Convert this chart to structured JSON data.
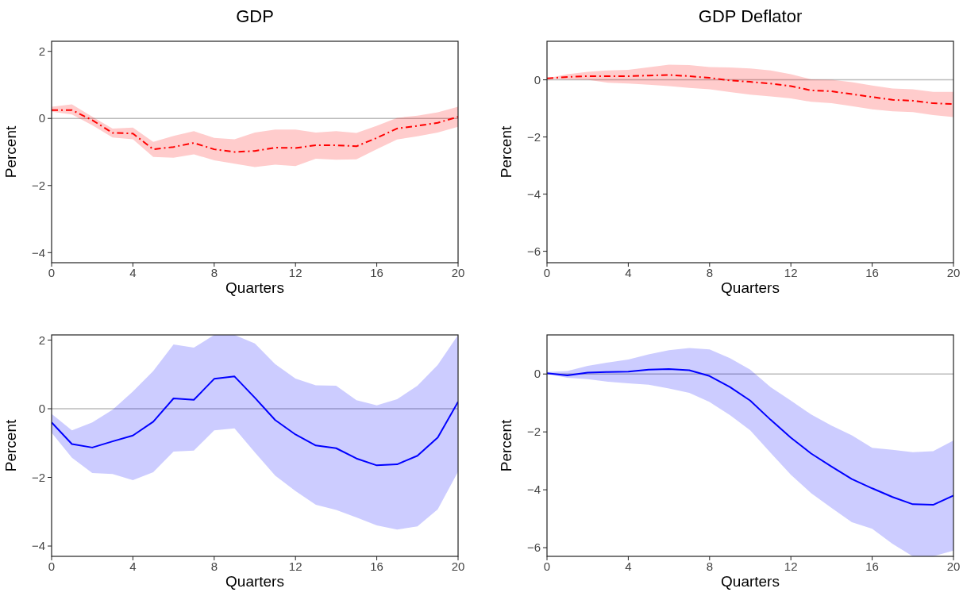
{
  "chart_data": [
    {
      "type": "line",
      "title": "GDP",
      "xlabel": "Quarters",
      "ylabel": "Percent",
      "x": [
        0,
        1,
        2,
        3,
        4,
        5,
        6,
        7,
        8,
        9,
        10,
        11,
        12,
        13,
        14,
        15,
        16,
        17,
        18,
        19,
        20
      ],
      "xlim": [
        0,
        20
      ],
      "xticks": [
        0,
        4,
        8,
        12,
        16,
        20
      ],
      "ylim": [
        -4.3,
        2.3
      ],
      "yticks": [
        -4,
        -2,
        0,
        2
      ],
      "grid": false,
      "line_style": "dashdot",
      "ref_lines": [
        {
          "axis": "y",
          "value": 0,
          "color": "#bbbbbb"
        }
      ],
      "series": [
        {
          "color": "#ff0000",
          "values": [
            0.25,
            0.25,
            -0.05,
            -0.43,
            -0.45,
            -0.92,
            -0.85,
            -0.73,
            -0.92,
            -1.0,
            -0.97,
            -0.87,
            -0.88,
            -0.8,
            -0.8,
            -0.83,
            -0.58,
            -0.3,
            -0.22,
            -0.13,
            0.05
          ],
          "upper": [
            0.35,
            0.42,
            0.05,
            -0.3,
            -0.27,
            -0.7,
            -0.52,
            -0.38,
            -0.58,
            -0.62,
            -0.42,
            -0.33,
            -0.33,
            -0.42,
            -0.38,
            -0.43,
            -0.22,
            0.02,
            0.08,
            0.18,
            0.35
          ],
          "lower": [
            0.2,
            0.12,
            -0.2,
            -0.57,
            -0.62,
            -1.15,
            -1.17,
            -1.07,
            -1.25,
            -1.35,
            -1.45,
            -1.38,
            -1.42,
            -1.2,
            -1.23,
            -1.22,
            -0.92,
            -0.63,
            -0.53,
            -0.42,
            -0.25
          ]
        }
      ]
    },
    {
      "type": "line",
      "title": "GDP Deflator",
      "xlabel": "Quarters",
      "ylabel": "Percent",
      "x": [
        0,
        1,
        2,
        3,
        4,
        5,
        6,
        7,
        8,
        9,
        10,
        11,
        12,
        13,
        14,
        15,
        16,
        17,
        18,
        19,
        20
      ],
      "xlim": [
        0,
        20
      ],
      "xticks": [
        0,
        4,
        8,
        12,
        16,
        20
      ],
      "ylim": [
        -6.4,
        1.35
      ],
      "yticks": [
        -6,
        -4,
        -2,
        0
      ],
      "grid": false,
      "line_style": "dashdot",
      "ref_lines": [
        {
          "axis": "y",
          "value": 0,
          "color": "#bbbbbb"
        }
      ],
      "series": [
        {
          "color": "#ff0000",
          "values": [
            0.05,
            0.1,
            0.13,
            0.13,
            0.13,
            0.15,
            0.17,
            0.13,
            0.07,
            -0.02,
            -0.07,
            -0.13,
            -0.22,
            -0.37,
            -0.4,
            -0.5,
            -0.6,
            -0.7,
            -0.73,
            -0.82,
            -0.85
          ],
          "upper": [
            0.05,
            0.2,
            0.28,
            0.33,
            0.35,
            0.44,
            0.53,
            0.52,
            0.45,
            0.43,
            0.4,
            0.33,
            0.2,
            0.02,
            0.0,
            -0.08,
            -0.2,
            -0.3,
            -0.33,
            -0.42,
            -0.42
          ],
          "lower": [
            0.05,
            0.02,
            0.0,
            -0.1,
            -0.13,
            -0.17,
            -0.22,
            -0.28,
            -0.33,
            -0.43,
            -0.52,
            -0.58,
            -0.65,
            -0.77,
            -0.82,
            -0.92,
            -1.03,
            -1.1,
            -1.13,
            -1.23,
            -1.3
          ]
        }
      ]
    },
    {
      "type": "line",
      "xlabel": "Quarters",
      "ylabel": "Percent",
      "x": [
        0,
        1,
        2,
        3,
        4,
        5,
        6,
        7,
        8,
        9,
        10,
        11,
        12,
        13,
        14,
        15,
        16,
        17,
        18,
        19,
        20
      ],
      "xlim": [
        0,
        20
      ],
      "xticks": [
        0,
        4,
        8,
        12,
        16,
        20
      ],
      "ylim": [
        -4.3,
        2.15
      ],
      "yticks": [
        -4,
        -2,
        0,
        2
      ],
      "grid": false,
      "line_style": "solid",
      "ref_lines": [
        {
          "axis": "y",
          "value": 0,
          "color": "#bbbbbb"
        }
      ],
      "series": [
        {
          "color": "#0000ff",
          "values": [
            -0.4,
            -1.03,
            -1.13,
            -0.95,
            -0.78,
            -0.38,
            0.3,
            0.26,
            0.87,
            0.94,
            0.32,
            -0.33,
            -0.75,
            -1.07,
            -1.15,
            -1.45,
            -1.65,
            -1.62,
            -1.37,
            -0.84,
            0.2
          ],
          "upper": [
            -0.15,
            -0.63,
            -0.4,
            -0.03,
            0.5,
            1.1,
            1.87,
            1.78,
            2.15,
            2.15,
            1.9,
            1.3,
            0.88,
            0.68,
            0.67,
            0.25,
            0.1,
            0.28,
            0.67,
            1.28,
            2.15
          ],
          "lower": [
            -0.7,
            -1.43,
            -1.87,
            -1.9,
            -2.08,
            -1.85,
            -1.25,
            -1.22,
            -0.63,
            -0.57,
            -1.27,
            -1.95,
            -2.4,
            -2.8,
            -2.95,
            -3.17,
            -3.4,
            -3.52,
            -3.43,
            -2.93,
            -1.83
          ]
        }
      ]
    },
    {
      "type": "line",
      "xlabel": "Quarters",
      "ylabel": "Percent",
      "x": [
        0,
        1,
        2,
        3,
        4,
        5,
        6,
        7,
        8,
        9,
        10,
        11,
        12,
        13,
        14,
        15,
        16,
        17,
        18,
        19,
        20
      ],
      "xlim": [
        0,
        20
      ],
      "xticks": [
        0,
        4,
        8,
        12,
        16,
        20
      ],
      "ylim": [
        -6.3,
        1.35
      ],
      "yticks": [
        -6,
        -4,
        -2,
        0
      ],
      "grid": false,
      "line_style": "solid",
      "ref_lines": [
        {
          "axis": "y",
          "value": 0,
          "color": "#bbbbbb"
        }
      ],
      "series": [
        {
          "color": "#0000ff",
          "values": [
            0.03,
            -0.05,
            0.05,
            0.07,
            0.08,
            0.15,
            0.17,
            0.13,
            -0.07,
            -0.45,
            -0.92,
            -1.58,
            -2.2,
            -2.75,
            -3.2,
            -3.63,
            -3.95,
            -4.25,
            -4.5,
            -4.52,
            -4.2
          ],
          "upper": [
            0.07,
            0.1,
            0.28,
            0.4,
            0.5,
            0.68,
            0.82,
            0.9,
            0.85,
            0.55,
            0.15,
            -0.45,
            -0.92,
            -1.4,
            -1.78,
            -2.12,
            -2.55,
            -2.62,
            -2.7,
            -2.67,
            -2.3
          ],
          "lower": [
            0.0,
            -0.13,
            -0.18,
            -0.27,
            -0.32,
            -0.37,
            -0.5,
            -0.65,
            -0.97,
            -1.42,
            -1.95,
            -2.72,
            -3.48,
            -4.12,
            -4.63,
            -5.12,
            -5.35,
            -5.87,
            -6.3,
            -6.3,
            -6.1
          ]
        }
      ]
    }
  ]
}
